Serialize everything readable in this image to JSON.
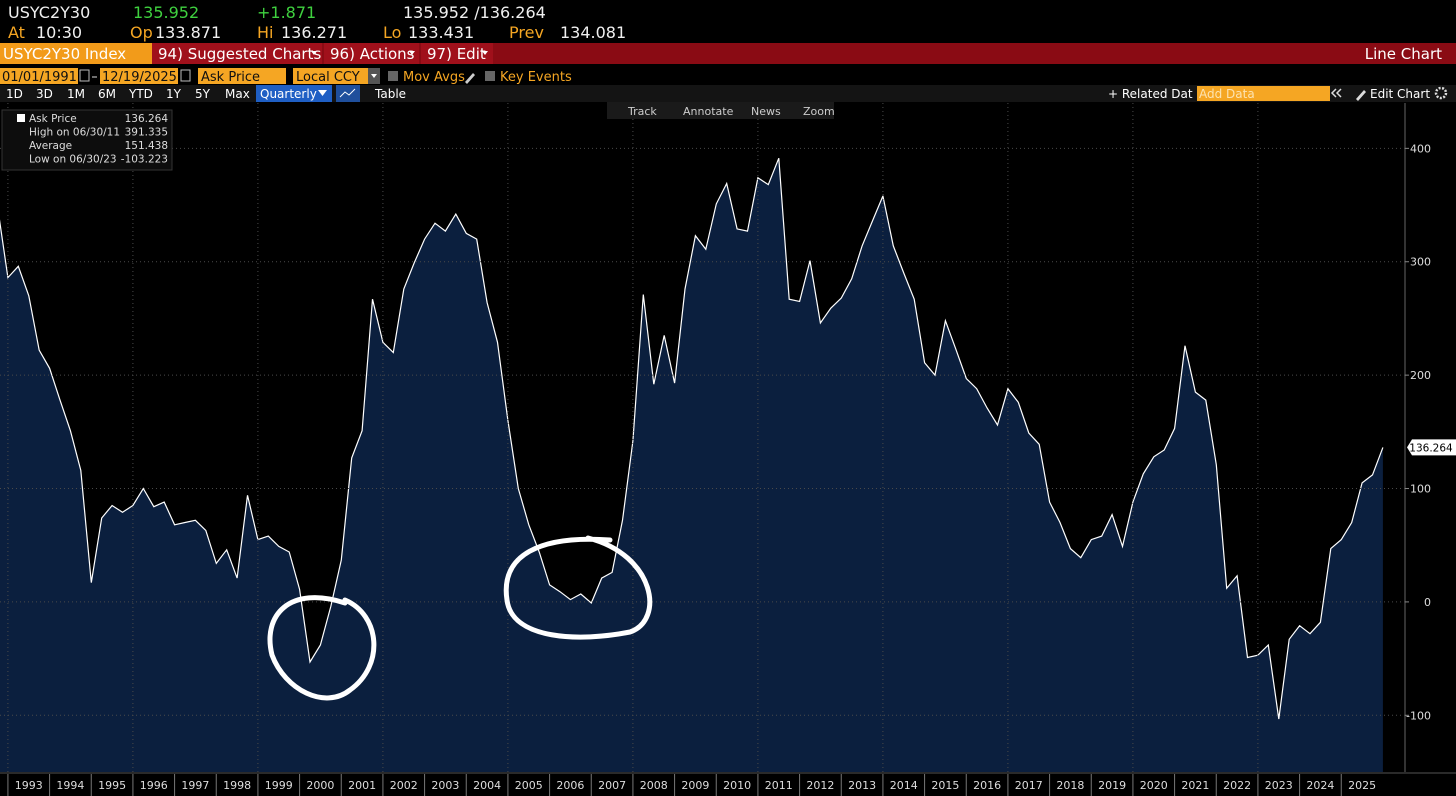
{
  "header": {
    "ticker": "USYC2Y30",
    "last": "135.952",
    "change": "+1.871",
    "bid_ask": "135.952 /136.264",
    "time_label": "At",
    "time": "10:30",
    "open_label": "Op",
    "open": "133.871",
    "high_label": "Hi",
    "high": "136.271",
    "low_label": "Lo",
    "low": "133.431",
    "prev_label": "Prev",
    "prev": "134.081"
  },
  "menu": {
    "security": "USYC2Y30 Index",
    "items": [
      "94) Suggested Charts",
      "96) Actions",
      "97) Edit"
    ],
    "chart_type": "Line Chart"
  },
  "controls": {
    "start_date": "01/01/1991",
    "end_date": "12/19/2025",
    "field": "Ask Price",
    "currency": "Local CCY",
    "options": [
      "Mov Avgs",
      "Key Events"
    ],
    "periods": [
      "1D",
      "3D",
      "1M",
      "6M",
      "YTD",
      "1Y",
      "5Y",
      "Max"
    ],
    "frequency": "Quarterly",
    "table": "Table",
    "related": "+ Related Dat",
    "add_data": "Add Data",
    "edit_chart": "Edit Chart"
  },
  "toolbar": [
    "Track",
    "Annotate",
    "News",
    "Zoom"
  ],
  "legend": [
    {
      "label": "Ask Price",
      "value": "136.264"
    },
    {
      "label": "High on 06/30/11",
      "value": "391.335"
    },
    {
      "label": "Average",
      "value": "151.438"
    },
    {
      "label": "Low on 06/30/23",
      "value": "-103.223"
    }
  ],
  "chart_data": {
    "type": "area",
    "x": [
      1992.75,
      1993,
      1993.25,
      1993.5,
      1993.75,
      1994,
      1994.25,
      1994.5,
      1994.75,
      1995,
      1995.25,
      1995.5,
      1995.75,
      1996,
      1996.25,
      1996.5,
      1996.75,
      1997,
      1997.25,
      1997.5,
      1997.75,
      1998,
      1998.25,
      1998.5,
      1998.75,
      1999,
      1999.25,
      1999.5,
      1999.75,
      2000,
      2000.25,
      2000.5,
      2000.75,
      2001,
      2001.25,
      2001.5,
      2001.75,
      2002,
      2002.25,
      2002.5,
      2002.75,
      2003,
      2003.25,
      2003.5,
      2003.75,
      2004,
      2004.25,
      2004.5,
      2004.75,
      2005,
      2005.25,
      2005.5,
      2005.75,
      2006,
      2006.25,
      2006.5,
      2006.75,
      2007,
      2007.25,
      2007.5,
      2007.75,
      2008,
      2008.25,
      2008.5,
      2008.75,
      2009,
      2009.25,
      2009.5,
      2009.75,
      2010,
      2010.25,
      2010.5,
      2010.75,
      2011,
      2011.25,
      2011.5,
      2011.75,
      2012,
      2012.25,
      2012.5,
      2012.75,
      2013,
      2013.25,
      2013.5,
      2013.75,
      2014,
      2014.25,
      2014.5,
      2014.75,
      2015,
      2015.25,
      2015.5,
      2015.75,
      2016,
      2016.25,
      2016.5,
      2016.75,
      2017,
      2017.25,
      2017.5,
      2017.75,
      2018,
      2018.25,
      2018.5,
      2018.75,
      2019,
      2019.25,
      2019.5,
      2019.75,
      2020,
      2020.25,
      2020.5,
      2020.75,
      2021,
      2021.25,
      2021.5,
      2021.75,
      2022,
      2022.25,
      2022.5,
      2022.75,
      2023,
      2023.25,
      2023.5,
      2023.75,
      2024,
      2024.25,
      2024.5,
      2024.75,
      2025,
      2025.25,
      2025.5,
      2025.75,
      2026
    ],
    "series": [
      {
        "name": "Ask Price",
        "color": "#ffffff",
        "fill": "#0b1f3e",
        "values": [
          349,
          286,
          296,
          270,
          222,
          206,
          178,
          151,
          116,
          17,
          74,
          85,
          79,
          85,
          100,
          84,
          88,
          68,
          70,
          72,
          63,
          34,
          46,
          21,
          94,
          55,
          58,
          49,
          44,
          11,
          -53,
          -38,
          -4,
          37,
          127,
          151,
          267,
          229,
          220,
          276,
          299,
          320,
          334,
          327,
          342,
          325,
          320,
          264,
          229,
          160,
          100,
          68,
          44,
          15,
          9,
          2,
          7,
          -1,
          21,
          26,
          72,
          142,
          271,
          192,
          235,
          193,
          276,
          323,
          311,
          351,
          369,
          329,
          327,
          374,
          368,
          391.335,
          267,
          265,
          301,
          246,
          259,
          268,
          285,
          314,
          336,
          358,
          314,
          290,
          267,
          211,
          200,
          248,
          223,
          197,
          188,
          171,
          156,
          188,
          176,
          149,
          139,
          88,
          70,
          47,
          39,
          55,
          58,
          77,
          49,
          88,
          113,
          128,
          134,
          153,
          226,
          185,
          178,
          121,
          12,
          23,
          -49,
          -47,
          -38,
          -103.223,
          -33,
          -21,
          -28,
          -18,
          47,
          55,
          70,
          105,
          112,
          136.264
        ]
      }
    ],
    "xlim": [
      1992.81,
      2026.53
    ],
    "xticks": [
      1993,
      1994,
      1995,
      1996,
      1997,
      1998,
      1999,
      2000,
      2001,
      2002,
      2003,
      2004,
      2005,
      2006,
      2007,
      2008,
      2009,
      2010,
      2011,
      2012,
      2013,
      2014,
      2015,
      2016,
      2017,
      2018,
      2019,
      2020,
      2021,
      2022,
      2023,
      2024,
      2025
    ],
    "ylim": [
      -150,
      440
    ],
    "yticks": [
      -100,
      0,
      100,
      200,
      300,
      400
    ],
    "grid": true
  }
}
